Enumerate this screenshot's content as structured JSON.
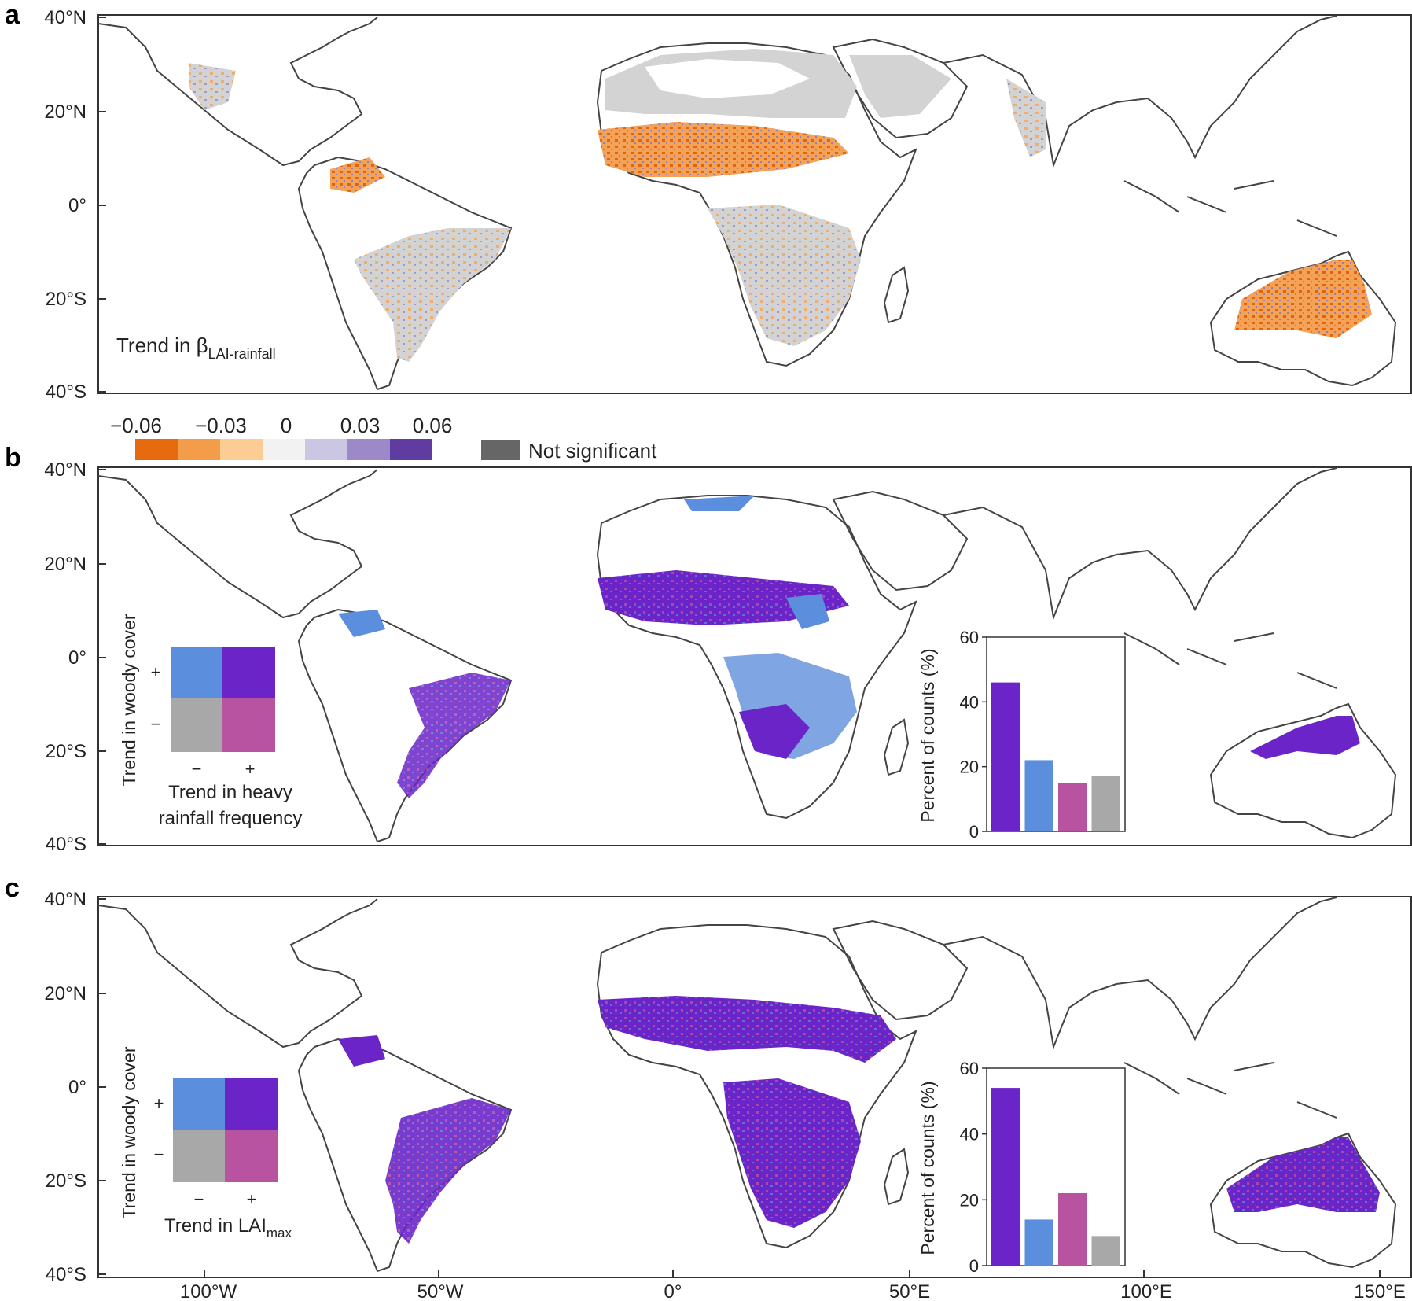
{
  "panels": [
    {
      "letter": "a",
      "map_label_main": "Trend in β",
      "map_label_sub": "LAI-rainfall"
    },
    {
      "letter": "b"
    },
    {
      "letter": "c"
    }
  ],
  "lat_ticks": [
    "40°N",
    "20°N",
    "0°",
    "20°S",
    "40°S"
  ],
  "lon_ticks": [
    "100°W",
    "50°W",
    "0°",
    "50°E",
    "100°E",
    "150°E"
  ],
  "colorbar": {
    "tick_labels": [
      "−0.06",
      "−0.03",
      "0",
      "0.03",
      "0.06"
    ],
    "colors": [
      "#e66a0e",
      "#f39c49",
      "#fccc95",
      "#f2f2f2",
      "#cbc6e2",
      "#9b89c8",
      "#5e3ca0"
    ],
    "not_significant_label": "Not significant",
    "not_significant_color": "#666666"
  },
  "legend_b": {
    "ylabel": "Trend in woody cover",
    "xlabel_line1": "Trend in heavy",
    "xlabel_line2": "rainfall frequency",
    "plus": "+",
    "minus": "−"
  },
  "legend_c": {
    "ylabel": "Trend in woody cover",
    "xlabel_main": "Trend in LAI",
    "xlabel_sub": "max",
    "plus": "+",
    "minus": "−"
  },
  "legend_colors": {
    "pp": "#6a24c8",
    "mp": "#5b8edc",
    "mm": "#a8a8a8",
    "pm": "#b853a2"
  },
  "chart_data": [
    {
      "type": "bar",
      "panel": "b",
      "ylabel": "Percent of counts (%)",
      "ylim": [
        0,
        60
      ],
      "yticks": [
        0,
        20,
        40,
        60
      ],
      "categories": [
        "woody+ / rain+",
        "woody+ / rain−",
        "woody− / rain+",
        "woody− / rain−"
      ],
      "values": [
        46,
        22,
        15,
        17
      ],
      "colors": [
        "#6a24c8",
        "#5b8edc",
        "#b853a2",
        "#a8a8a8"
      ]
    },
    {
      "type": "bar",
      "panel": "c",
      "ylabel": "Percent of counts (%)",
      "ylim": [
        0,
        60
      ],
      "yticks": [
        0,
        20,
        40,
        60
      ],
      "categories": [
        "woody+ / LAImax+",
        "woody+ / LAImax−",
        "woody− / LAImax+",
        "woody− / LAImax−"
      ],
      "values": [
        54,
        14,
        22,
        9
      ],
      "colors": [
        "#6a24c8",
        "#5b8edc",
        "#b853a2",
        "#a8a8a8"
      ]
    }
  ]
}
